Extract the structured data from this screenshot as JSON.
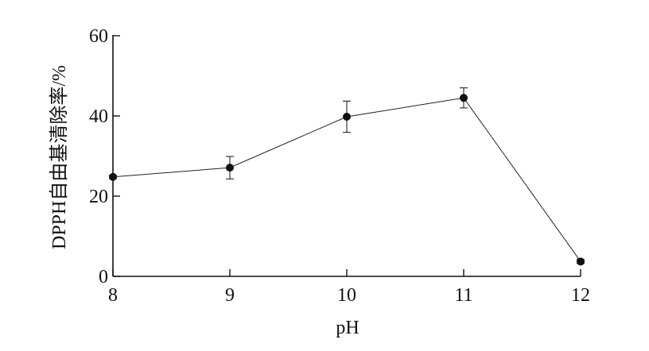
{
  "chart_data": {
    "type": "line",
    "title": "",
    "xlabel": "pH",
    "ylabel": "DPPH自由基清除率/%",
    "x": [
      8,
      9,
      10,
      11,
      12
    ],
    "x_ticks": [
      "8",
      "9",
      "10",
      "11",
      "12"
    ],
    "y_ticks": [
      "0",
      "20",
      "40",
      "60"
    ],
    "xlim": [
      8,
      12
    ],
    "ylim": [
      0,
      60
    ],
    "grid": false,
    "legend": "none",
    "series": [
      {
        "values": [
          24.8,
          27.1,
          39.8,
          44.5,
          3.7
        ],
        "error": [
          0.4,
          2.8,
          3.9,
          2.5,
          0.5
        ],
        "color": "#111111",
        "marker": "filled-circle"
      }
    ]
  }
}
